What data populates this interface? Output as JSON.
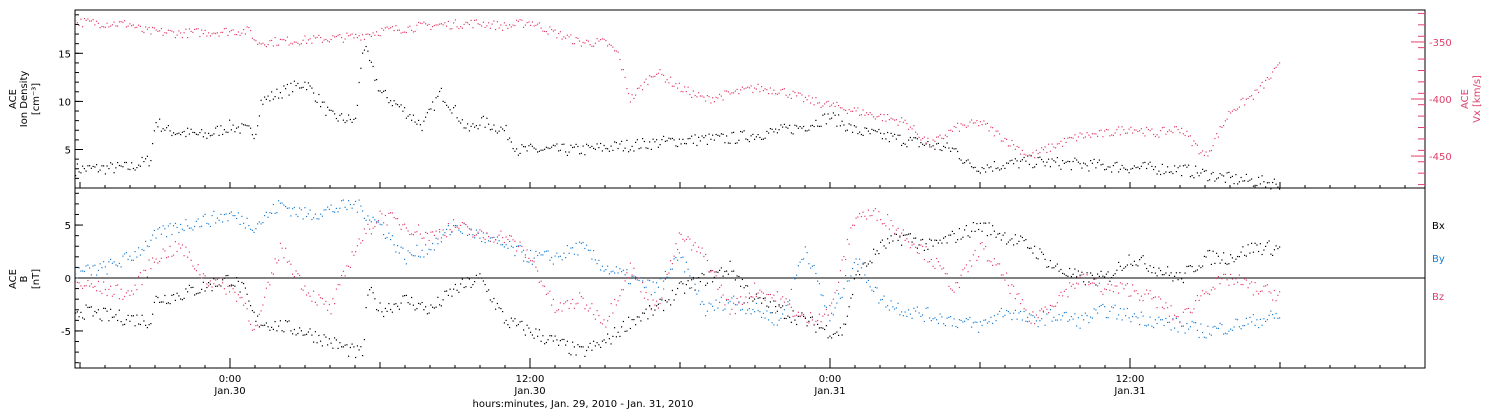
{
  "figure": {
    "xaxis_title": "hours:minutes, Jan. 29, 2010 - Jan. 31, 2010",
    "x_ticks": [
      {
        "t": 0,
        "time": "0:00",
        "date": "Jan.30"
      },
      {
        "t": 12,
        "time": "12:00",
        "date": "Jan.30"
      },
      {
        "t": 24,
        "time": "0:00",
        "date": "Jan.31"
      },
      {
        "t": 36,
        "time": "12:00",
        "date": "Jan.31"
      }
    ],
    "x_range_hours": [
      -6.2,
      47.8
    ]
  },
  "chart_data": [
    {
      "type": "scatter",
      "panel": "top",
      "ylabel_left": [
        "ACE",
        "Ion Density",
        "[cm⁻³]"
      ],
      "ylabel_right": [
        "ACE",
        "Vx [km/s]"
      ],
      "left_axis": {
        "ylim": [
          1,
          19.5
        ],
        "ticks": [
          5,
          10,
          15
        ],
        "color": "#000000"
      },
      "right_axis": {
        "ylim": [
          -478,
          -322
        ],
        "ticks": [
          -350,
          -400,
          -450
        ],
        "color": "#e0406c"
      },
      "series": [
        {
          "color": "#000000",
          "axis": "left",
          "points": [
            [
              -6.2,
              3
            ],
            [
              -4,
              3.2
            ],
            [
              -3.2,
              4
            ],
            [
              -3,
              8
            ],
            [
              -2.5,
              7
            ],
            [
              -1,
              6.5
            ],
            [
              0,
              7.5
            ],
            [
              1,
              6.8
            ],
            [
              1.2,
              10
            ],
            [
              2,
              11
            ],
            [
              3,
              12
            ],
            [
              3.6,
              10
            ],
            [
              4,
              8.5
            ],
            [
              5,
              8
            ],
            [
              5.3,
              16
            ],
            [
              6,
              11
            ],
            [
              7,
              9
            ],
            [
              7.7,
              7.5
            ],
            [
              8.4,
              11
            ],
            [
              9,
              9
            ],
            [
              9.5,
              7
            ],
            [
              10,
              8
            ],
            [
              11,
              7
            ],
            [
              11.5,
              5
            ],
            [
              12,
              5
            ],
            [
              14,
              5
            ],
            [
              16,
              5.5
            ],
            [
              18,
              6
            ],
            [
              20,
              6.2
            ],
            [
              22,
              7
            ],
            [
              23,
              7.5
            ],
            [
              24,
              8.5
            ],
            [
              25,
              7
            ],
            [
              26,
              6.5
            ],
            [
              27,
              6
            ],
            [
              28,
              5.5
            ],
            [
              29,
              5
            ],
            [
              29.5,
              3.5
            ],
            [
              30,
              3.2
            ],
            [
              32,
              3.8
            ],
            [
              34,
              3.5
            ],
            [
              36,
              3.2
            ],
            [
              38,
              3
            ],
            [
              40,
              2
            ],
            [
              42,
              1.5
            ]
          ]
        },
        {
          "color": "#e0406c",
          "axis": "right",
          "points": [
            [
              -6.2,
              -332
            ],
            [
              -4,
              -334
            ],
            [
              -3.5,
              -340
            ],
            [
              -2,
              -342
            ],
            [
              0,
              -340
            ],
            [
              0.8,
              -340
            ],
            [
              1,
              -350
            ],
            [
              3,
              -348
            ],
            [
              5,
              -345
            ],
            [
              6,
              -340
            ],
            [
              8,
              -335
            ],
            [
              10,
              -333
            ],
            [
              11,
              -336
            ],
            [
              12,
              -332
            ],
            [
              13,
              -342
            ],
            [
              14,
              -350
            ],
            [
              15,
              -350
            ],
            [
              15.5,
              -360
            ],
            [
              16,
              -400
            ],
            [
              17,
              -375
            ],
            [
              18,
              -390
            ],
            [
              19,
              -400
            ],
            [
              20,
              -395
            ],
            [
              21,
              -390
            ],
            [
              22,
              -392
            ],
            [
              23,
              -400
            ],
            [
              24,
              -405
            ],
            [
              25,
              -410
            ],
            [
              26,
              -415
            ],
            [
              27,
              -420
            ],
            [
              28,
              -440
            ],
            [
              29,
              -425
            ],
            [
              30,
              -420
            ],
            [
              31,
              -435
            ],
            [
              32,
              -450
            ],
            [
              33,
              -440
            ],
            [
              34,
              -432
            ],
            [
              35,
              -430
            ],
            [
              36,
              -425
            ],
            [
              37,
              -430
            ],
            [
              38,
              -425
            ],
            [
              39,
              -450
            ],
            [
              40,
              -410
            ],
            [
              41,
              -395
            ],
            [
              42,
              -370
            ]
          ]
        }
      ]
    },
    {
      "type": "scatter",
      "panel": "bottom",
      "ylabel_left": [
        "ACE",
        "B",
        "[nT]"
      ],
      "ylim": [
        -8.5,
        8.5
      ],
      "ticks": [
        -5,
        0,
        5
      ],
      "zero_line": true,
      "series": [
        {
          "name": "Bx",
          "color": "#000000",
          "points": [
            [
              -6.2,
              -3
            ],
            [
              -5,
              -3.5
            ],
            [
              -3.2,
              -4
            ],
            [
              -3,
              -2
            ],
            [
              -2,
              -1.5
            ],
            [
              0,
              0
            ],
            [
              0.5,
              -1
            ],
            [
              1,
              -4
            ],
            [
              2,
              -4.5
            ],
            [
              3,
              -5
            ],
            [
              4,
              -6
            ],
            [
              5,
              -7
            ],
            [
              5.3,
              -7
            ],
            [
              5.5,
              -1
            ],
            [
              6,
              -3
            ],
            [
              7,
              -2
            ],
            [
              8,
              -3
            ],
            [
              9,
              -1
            ],
            [
              10,
              0
            ],
            [
              11,
              -4
            ],
            [
              12,
              -5
            ],
            [
              13,
              -6
            ],
            [
              14,
              -7
            ],
            [
              15,
              -6
            ],
            [
              16,
              -4
            ],
            [
              17,
              -3
            ],
            [
              18,
              -1
            ],
            [
              19,
              0
            ],
            [
              20,
              1
            ],
            [
              21,
              -2
            ],
            [
              22,
              -3
            ],
            [
              23,
              -4
            ],
            [
              24,
              -5
            ],
            [
              24.5,
              -5
            ],
            [
              25,
              0
            ],
            [
              26,
              3
            ],
            [
              27,
              4
            ],
            [
              28,
              3
            ],
            [
              29,
              4
            ],
            [
              30,
              5
            ],
            [
              31,
              4
            ],
            [
              32,
              3
            ],
            [
              33,
              1
            ],
            [
              34,
              0
            ],
            [
              35,
              0
            ],
            [
              36,
              2
            ],
            [
              37,
              1
            ],
            [
              38,
              0
            ],
            [
              39,
              2
            ],
            [
              40,
              2
            ],
            [
              41,
              3
            ],
            [
              42,
              2.8
            ]
          ]
        },
        {
          "name": "By",
          "color": "#1a7fd4",
          "points": [
            [
              -6.2,
              0.5
            ],
            [
              -5,
              1
            ],
            [
              -4,
              2
            ],
            [
              -3,
              4
            ],
            [
              -2,
              5
            ],
            [
              0,
              6
            ],
            [
              1,
              5
            ],
            [
              2,
              7
            ],
            [
              3,
              6
            ],
            [
              4,
              6.5
            ],
            [
              5,
              7
            ],
            [
              6,
              5
            ],
            [
              7,
              2
            ],
            [
              8,
              3
            ],
            [
              9,
              5
            ],
            [
              10,
              4
            ],
            [
              11,
              3
            ],
            [
              12,
              2
            ],
            [
              13,
              2
            ],
            [
              14,
              3
            ],
            [
              15,
              1
            ],
            [
              16,
              0
            ],
            [
              17,
              -1
            ],
            [
              18,
              2
            ],
            [
              19,
              -3
            ],
            [
              20,
              -2
            ],
            [
              21,
              -3
            ],
            [
              22,
              -4
            ],
            [
              23,
              3
            ],
            [
              24,
              -4
            ],
            [
              25,
              2
            ],
            [
              26,
              -2
            ],
            [
              27,
              -3
            ],
            [
              28,
              -3.5
            ],
            [
              29,
              -4
            ],
            [
              30,
              -4.5
            ],
            [
              31,
              -3
            ],
            [
              32,
              -4
            ],
            [
              33,
              -3.5
            ],
            [
              34,
              -4
            ],
            [
              35,
              -3
            ],
            [
              36,
              -3.5
            ],
            [
              37,
              -4
            ],
            [
              38,
              -4.5
            ],
            [
              39,
              -5
            ],
            [
              40,
              -4.5
            ],
            [
              41,
              -4
            ],
            [
              42,
              -3.5
            ]
          ]
        },
        {
          "name": "Bz",
          "color": "#e0406c",
          "points": [
            [
              -6.2,
              -0.5
            ],
            [
              -5,
              -1
            ],
            [
              -4,
              -1.5
            ],
            [
              -3,
              2
            ],
            [
              -2,
              3
            ],
            [
              -1,
              0
            ],
            [
              0,
              -1
            ],
            [
              0.5,
              -2
            ],
            [
              1,
              -5
            ],
            [
              2,
              3
            ],
            [
              3,
              -1
            ],
            [
              4,
              -3
            ],
            [
              5,
              3
            ],
            [
              6,
              6
            ],
            [
              7,
              5
            ],
            [
              8,
              4
            ],
            [
              9,
              5
            ],
            [
              10,
              4
            ],
            [
              11,
              4
            ],
            [
              12,
              2
            ],
            [
              13,
              -3
            ],
            [
              14,
              -2
            ],
            [
              15,
              -4
            ],
            [
              16,
              1
            ],
            [
              17,
              -3
            ],
            [
              18,
              4
            ],
            [
              19,
              2
            ],
            [
              20,
              -3
            ],
            [
              21,
              -1
            ],
            [
              22,
              -2
            ],
            [
              23,
              -4
            ],
            [
              24,
              -3
            ],
            [
              25,
              6
            ],
            [
              26,
              6
            ],
            [
              27,
              4
            ],
            [
              28,
              2
            ],
            [
              29,
              -1
            ],
            [
              30,
              3
            ],
            [
              31,
              0
            ],
            [
              32,
              -4
            ],
            [
              33,
              -2
            ],
            [
              34,
              0
            ],
            [
              35,
              -1
            ],
            [
              36,
              -1
            ],
            [
              37,
              -2
            ],
            [
              38,
              -4
            ],
            [
              39,
              -1
            ],
            [
              40,
              0
            ],
            [
              41,
              -1
            ],
            [
              42,
              -1.5
            ]
          ]
        }
      ]
    }
  ]
}
